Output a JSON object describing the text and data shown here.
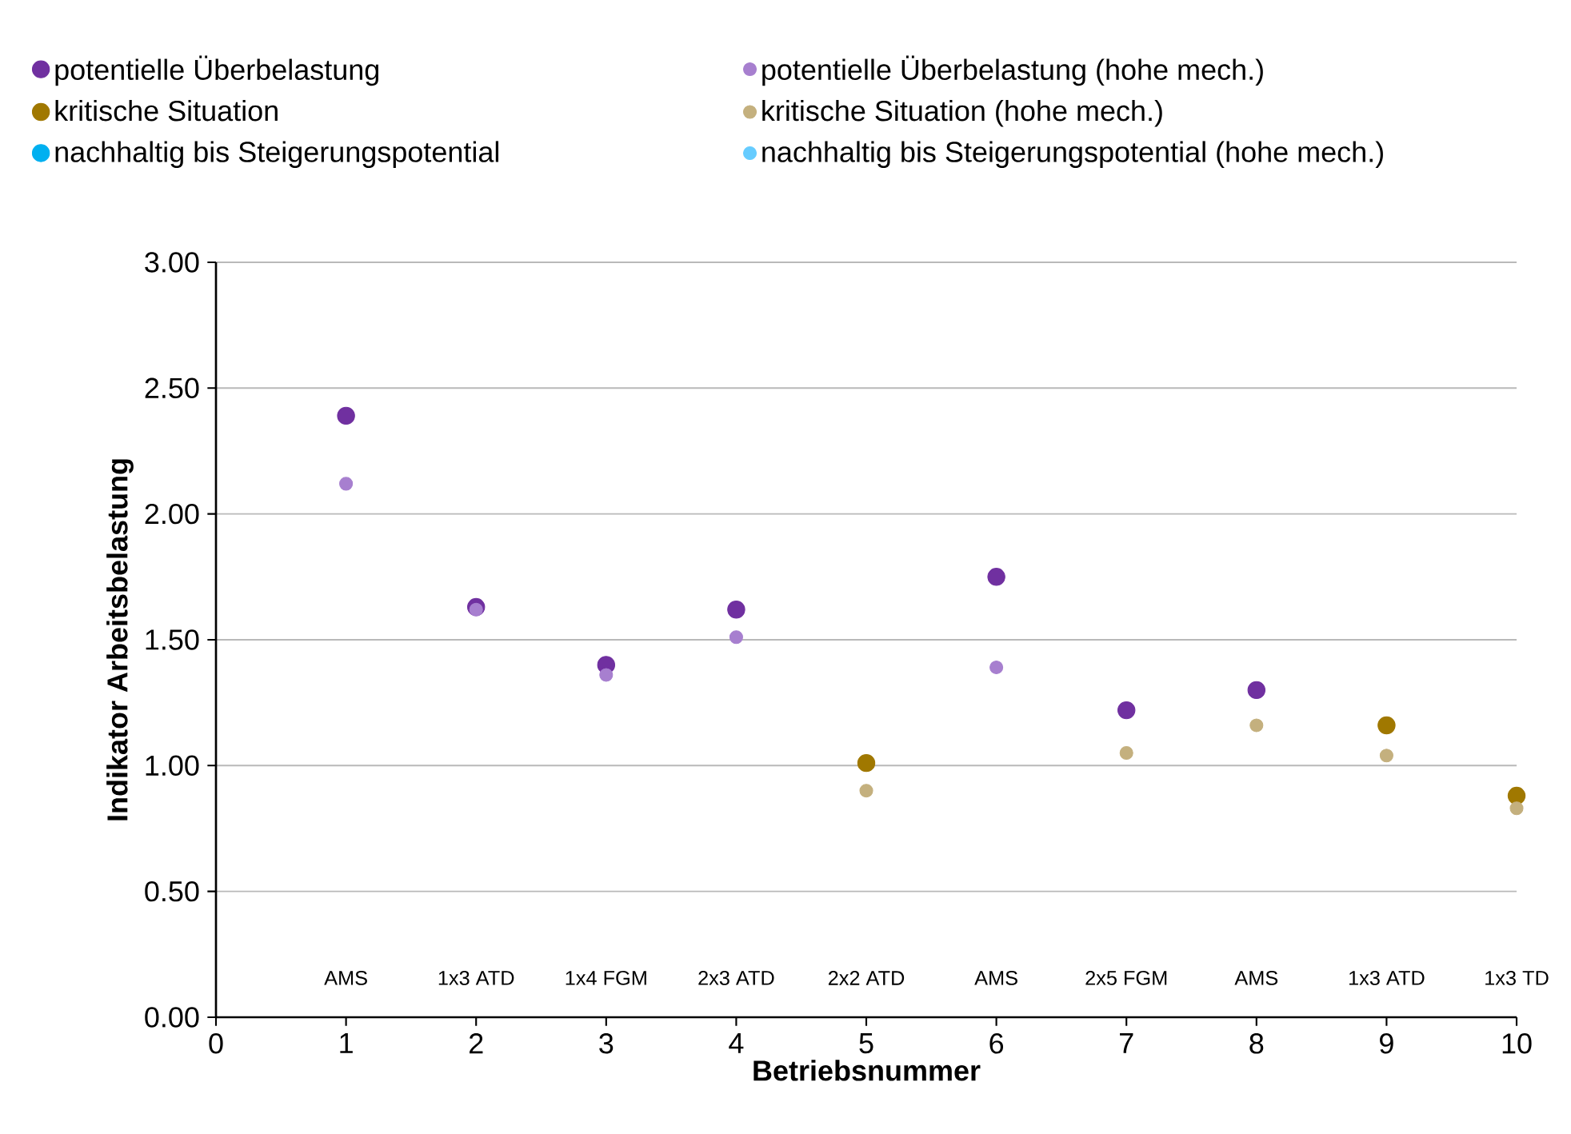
{
  "chart_data": {
    "type": "scatter",
    "xlabel": "Betriebsnummer",
    "ylabel": "Indikator Arbeitsbelastung",
    "x": [
      1,
      2,
      3,
      4,
      5,
      6,
      7,
      8,
      9,
      10
    ],
    "series": [
      {
        "name": "potentielle Überbelastung",
        "color": "#7030a0",
        "values": [
          2.39,
          1.63,
          1.4,
          1.62,
          null,
          1.75,
          1.22,
          1.3,
          null,
          null
        ]
      },
      {
        "name": "potentielle Überbelastung (hohe mech.)",
        "color": "#a77fcf",
        "values": [
          2.12,
          1.62,
          1.36,
          1.51,
          null,
          1.39,
          null,
          null,
          null,
          null
        ]
      },
      {
        "name": "kritische Situation",
        "color": "#a07800",
        "values": [
          null,
          null,
          null,
          null,
          1.01,
          null,
          null,
          null,
          1.16,
          0.88
        ]
      },
      {
        "name": "kritische Situation (hohe mech.)",
        "color": "#c4b07e",
        "values": [
          null,
          null,
          null,
          null,
          0.9,
          null,
          1.05,
          1.16,
          1.04,
          0.83
        ]
      },
      {
        "name": "nachhaltig bis Steigerungspotential",
        "color": "#00b0f0",
        "values": [
          null,
          null,
          null,
          null,
          null,
          null,
          null,
          null,
          null,
          null
        ]
      },
      {
        "name": "nachhaltig bis Steigerungspotential (hohe mech.)",
        "color": "#66ccff",
        "values": [
          null,
          null,
          null,
          null,
          null,
          null,
          null,
          null,
          null,
          null
        ]
      }
    ],
    "xlim": [
      0,
      10
    ],
    "xticks": [
      0,
      1,
      2,
      3,
      4,
      5,
      6,
      7,
      8,
      9,
      10
    ],
    "ylim": [
      0,
      3
    ],
    "yticks": [
      {
        "value": 0,
        "label": "0.00"
      },
      {
        "value": 0.5,
        "label": "0.50"
      },
      {
        "value": 1,
        "label": "1.00"
      },
      {
        "value": 1.5,
        "label": "1.50"
      },
      {
        "value": 2,
        "label": "2.00"
      },
      {
        "value": 2.5,
        "label": "2.50"
      },
      {
        "value": 3,
        "label": "3.00"
      }
    ],
    "grid": "y",
    "legend": "top",
    "marker": "circle",
    "annotations": [
      "AMS",
      "1x3 ATD",
      "1x4 FGM",
      "2x3 ATD",
      "2x2 ATD",
      "AMS",
      "2x5 FGM",
      "AMS",
      "1x3 ATD",
      "1x3 TD"
    ]
  }
}
